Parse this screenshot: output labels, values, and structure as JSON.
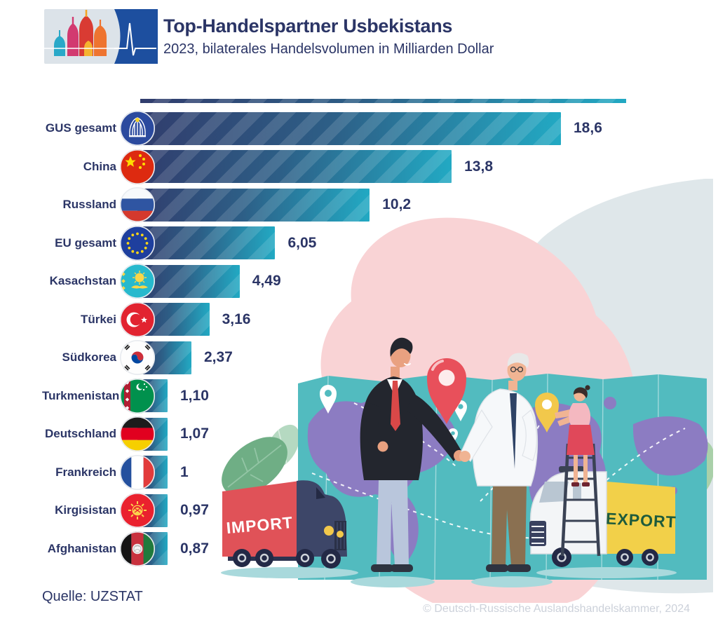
{
  "header": {
    "title": "Top-Handelspartner Usbekistans",
    "subtitle": "2023, bilaterales Handelsvolumen in Milliarden Dollar",
    "logo": {
      "icon": "cathedral-domes-and-pulse-logo",
      "panel_blue": "#1d4f9f"
    }
  },
  "chart_data": {
    "type": "bar",
    "orientation": "horizontal",
    "title": "Top-Handelspartner Usbekistans",
    "subtitle": "2023, bilaterales Handelsvolumen in Milliarden Dollar",
    "unit": "Milliarden Dollar",
    "year": "2023",
    "categories": [
      "GUS gesamt",
      "China",
      "Russland",
      "EU gesamt",
      "Kasachstan",
      "Türkei",
      "Südkorea",
      "Turkmenistan",
      "Deutschland",
      "Frankreich",
      "Kirgisistan",
      "Afghanistan"
    ],
    "values": [
      18.6,
      13.8,
      10.2,
      6.05,
      4.49,
      3.16,
      2.37,
      1.1,
      1.07,
      1,
      0.97,
      0.87
    ],
    "value_labels": [
      "18,6",
      "13,8",
      "10,2",
      "6,05",
      "4,49",
      "3,16",
      "2,37",
      "1,10",
      "1,07",
      "1",
      "0,97",
      "0,87"
    ],
    "flags": [
      "cis",
      "china",
      "russia",
      "eu",
      "kazakhstan",
      "turkey",
      "south-korea",
      "turkmenistan",
      "germany",
      "france",
      "kyrgyzstan",
      "afghanistan"
    ],
    "xlim": [
      0,
      18.6
    ],
    "grid": false,
    "legend": false,
    "bar_gradient": [
      "#313d6d",
      "#22a9c3"
    ],
    "text_color": "#2b3566"
  },
  "illustration": {
    "import_label": "IMPORT",
    "export_label": "EXPORT",
    "import_color": "#e05258",
    "export_color": "#f2d049",
    "map_color": "#52bbbf",
    "pink_blob": "#f9d3d5",
    "gray_blob": "#dfe7ea"
  },
  "footer": {
    "source": "Quelle: UZSTAT",
    "copyright": "© Deutsch-Russische Auslandshandelskammer, 2024"
  }
}
